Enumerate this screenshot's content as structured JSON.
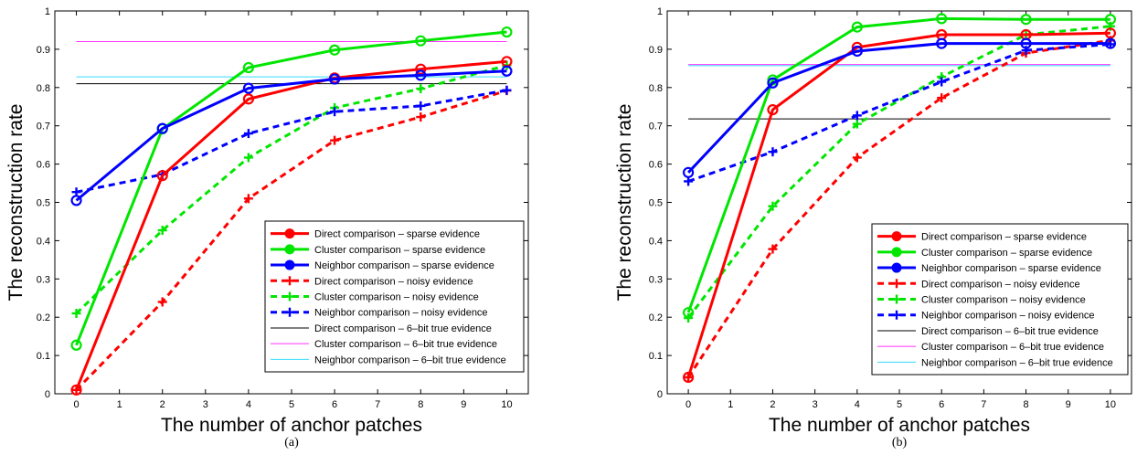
{
  "chart_data": [
    {
      "type": "line",
      "panel_label": "(a)",
      "xlabel": "The number of anchor patches",
      "ylabel": "The reconstruction rate",
      "xlim": [
        -0.5,
        10.5
      ],
      "ylim": [
        0,
        1
      ],
      "xticks": [
        0,
        1,
        2,
        3,
        4,
        5,
        6,
        7,
        8,
        9,
        10
      ],
      "yticks": [
        0,
        0.1,
        0.2,
        0.3,
        0.4,
        0.5,
        0.6,
        0.7,
        0.8,
        0.9,
        1
      ],
      "ytick_labels": [
        "0",
        "0.1",
        "0.2",
        "0.3",
        "0.4",
        "0.5",
        "0.6",
        "0.7",
        "0.8",
        "0.9",
        "1"
      ],
      "grid": false,
      "legend_position": "lower-right",
      "x": [
        0,
        2,
        4,
        6,
        8,
        10
      ],
      "series": [
        {
          "name": "Direct comparison – sparse evidence",
          "style": "solid-circle",
          "color": "#ff0000",
          "values": [
            0.01,
            0.57,
            0.77,
            0.825,
            0.848,
            0.868
          ]
        },
        {
          "name": "Cluster comparison – sparse evidence",
          "style": "solid-circle",
          "color": "#00e600",
          "values": [
            0.127,
            0.692,
            0.852,
            0.898,
            0.922,
            0.945
          ]
        },
        {
          "name": "Neighbor comparison – sparse evidence",
          "style": "solid-circle",
          "color": "#0000ff",
          "values": [
            0.505,
            0.693,
            0.798,
            0.822,
            0.832,
            0.843
          ]
        },
        {
          "name": "Direct comparison – noisy evidence",
          "style": "dashed-plus",
          "color": "#ff0000",
          "values": [
            0.01,
            0.24,
            0.51,
            0.662,
            0.723,
            0.792
          ]
        },
        {
          "name": "Cluster comparison – noisy evidence",
          "style": "dashed-plus",
          "color": "#00e600",
          "values": [
            0.21,
            0.427,
            0.617,
            0.747,
            0.797,
            0.858
          ]
        },
        {
          "name": "Neighbor comparison – noisy evidence",
          "style": "dashed-plus",
          "color": "#0000ff",
          "values": [
            0.527,
            0.573,
            0.68,
            0.737,
            0.752,
            0.793
          ]
        },
        {
          "name": "Direct comparison – 6–bit true evidence",
          "style": "thin-hline",
          "color": "#000000",
          "values": [
            0.81,
            0.81,
            0.81,
            0.81,
            0.81,
            0.81
          ]
        },
        {
          "name": "Cluster comparison – 6–bit true evidence",
          "style": "thin-hline",
          "color": "#ff33ff",
          "values": [
            0.92,
            0.92,
            0.92,
            0.92,
            0.92,
            0.92
          ]
        },
        {
          "name": "Neighbor comparison – 6–bit true evidence",
          "style": "thin-hline",
          "color": "#33ddff",
          "values": [
            0.828,
            0.828,
            0.828,
            0.828,
            0.828,
            0.828
          ]
        }
      ]
    },
    {
      "type": "line",
      "panel_label": "(b)",
      "xlabel": "The number of anchor patches",
      "ylabel": "The reconstruction rate",
      "xlim": [
        -0.5,
        10.5
      ],
      "ylim": [
        0,
        1
      ],
      "xticks": [
        0,
        1,
        2,
        3,
        4,
        5,
        6,
        7,
        8,
        9,
        10
      ],
      "yticks": [
        0,
        0.1,
        0.2,
        0.3,
        0.4,
        0.5,
        0.6,
        0.7,
        0.8,
        0.9,
        1
      ],
      "ytick_labels": [
        "0",
        "0.1",
        "0.2",
        "0.3",
        "0.4",
        "0.5",
        "0.6",
        "0.7",
        "0.8",
        "0.9",
        "1"
      ],
      "grid": false,
      "legend_position": "lower-right",
      "x": [
        0,
        2,
        4,
        6,
        8,
        10
      ],
      "series": [
        {
          "name": "Direct comparison – sparse evidence",
          "style": "solid-circle",
          "color": "#ff0000",
          "values": [
            0.043,
            0.742,
            0.905,
            0.938,
            0.938,
            0.942
          ]
        },
        {
          "name": "Cluster comparison – sparse evidence",
          "style": "solid-circle",
          "color": "#00e600",
          "values": [
            0.212,
            0.82,
            0.958,
            0.98,
            0.978,
            0.978
          ]
        },
        {
          "name": "Neighbor comparison – sparse evidence",
          "style": "solid-circle",
          "color": "#0000ff",
          "values": [
            0.578,
            0.812,
            0.895,
            0.915,
            0.915,
            0.915
          ]
        },
        {
          "name": "Direct comparison – noisy evidence",
          "style": "dashed-plus",
          "color": "#ff0000",
          "values": [
            0.043,
            0.378,
            0.617,
            0.773,
            0.89,
            0.923
          ]
        },
        {
          "name": "Cluster comparison – noisy evidence",
          "style": "dashed-plus",
          "color": "#00e600",
          "values": [
            0.198,
            0.49,
            0.705,
            0.828,
            0.938,
            0.96
          ]
        },
        {
          "name": "Neighbor comparison – noisy evidence",
          "style": "dashed-plus",
          "color": "#0000ff",
          "values": [
            0.555,
            0.632,
            0.727,
            0.815,
            0.897,
            0.913
          ]
        },
        {
          "name": "Direct comparison – 6–bit true evidence",
          "style": "thin-hline",
          "color": "#000000",
          "values": [
            0.718,
            0.718,
            0.718,
            0.718,
            0.718,
            0.718
          ]
        },
        {
          "name": "Cluster comparison – 6–bit true evidence",
          "style": "thin-hline",
          "color": "#ff33ff",
          "values": [
            0.86,
            0.86,
            0.86,
            0.86,
            0.86,
            0.86
          ]
        },
        {
          "name": "Neighbor comparison – 6–bit true evidence",
          "style": "thin-hline",
          "color": "#33ddff",
          "values": [
            0.857,
            0.857,
            0.857,
            0.857,
            0.857,
            0.857
          ]
        }
      ]
    }
  ]
}
